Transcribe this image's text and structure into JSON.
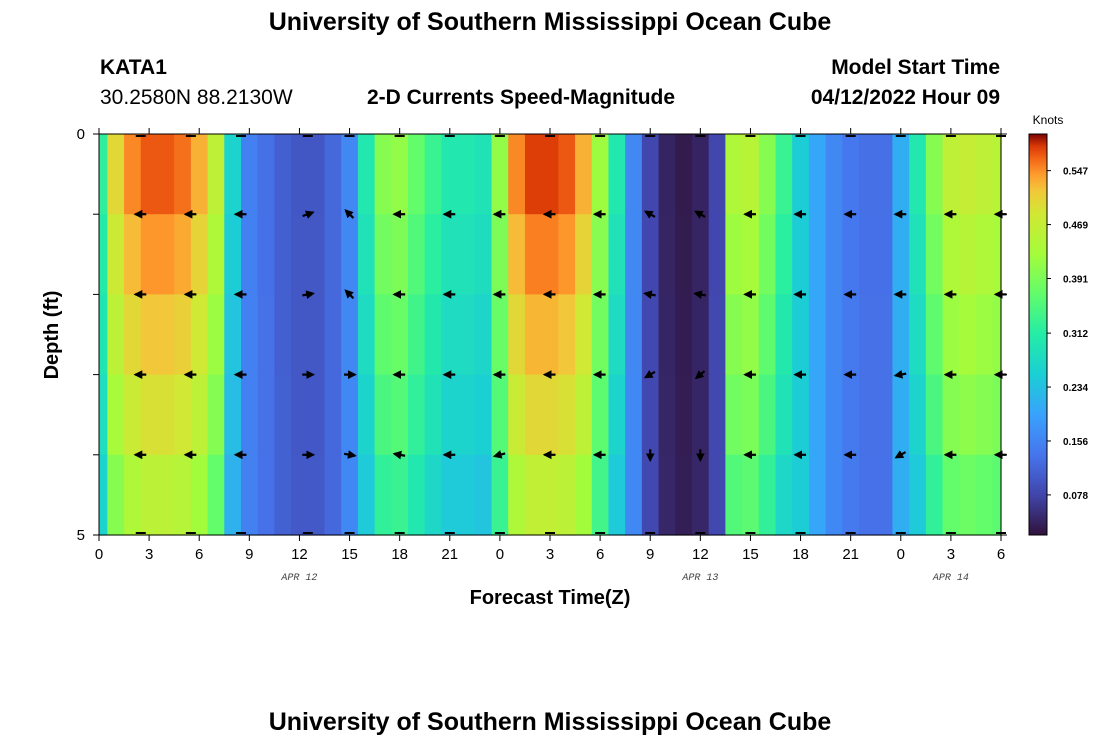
{
  "header": {
    "title": "University of Southern Mississippi Ocean Cube",
    "station": "KATA1",
    "coords": "30.2580N  88.2130W",
    "subtitle": "2-D Currents Speed-Magnitude",
    "model_label": "Model Start Time",
    "model_time": "04/12/2022 Hour 09"
  },
  "footer": {
    "title": "University of Southern Mississippi Ocean Cube"
  },
  "chart_data": {
    "type": "heatmap",
    "title": "2-D Currents Speed-Magnitude",
    "xlabel": "Forecast Time(Z)",
    "ylabel": "Depth (ft)",
    "x_ticks": [
      "0",
      "3",
      "6",
      "9",
      "12",
      "15",
      "18",
      "21",
      "0",
      "3",
      "6",
      "9",
      "12",
      "15",
      "18",
      "21",
      "0",
      "3",
      "6"
    ],
    "date_labels": [
      {
        "label": "APR 12",
        "at_tick": 4
      },
      {
        "label": "APR 13",
        "at_tick": 12
      },
      {
        "label": "APR 14",
        "at_tick": 17
      }
    ],
    "y_ticks": [
      "0",
      "5"
    ],
    "ylim": [
      0,
      5
    ],
    "xlim_hours": [
      0,
      54
    ],
    "colorbar": {
      "label": "Knots",
      "ticks": [
        "0.547",
        "0.469",
        "0.391",
        "0.312",
        "0.234",
        "0.156",
        "0.078"
      ],
      "tick_values": [
        0.547,
        0.469,
        0.391,
        0.312,
        0.234,
        0.156,
        0.078
      ],
      "range": [
        0.02,
        0.6
      ]
    },
    "depth_rows": [
      0.5,
      1.5,
      2.5,
      3.5,
      4.5
    ],
    "times_hours": [
      0,
      1,
      2,
      3,
      4,
      5,
      6,
      7,
      8,
      9,
      10,
      11,
      12,
      13,
      14,
      15,
      16,
      17,
      18,
      19,
      20,
      21,
      22,
      23,
      24,
      25,
      26,
      27,
      28,
      29,
      30,
      31,
      32,
      33,
      34,
      35,
      36,
      37,
      38,
      39,
      40,
      41,
      42,
      43,
      44,
      45,
      46,
      47,
      48,
      49,
      50,
      51,
      52,
      53,
      54
    ],
    "speed_profile_knots": [
      0.32,
      0.5,
      0.55,
      0.57,
      0.57,
      0.56,
      0.53,
      0.46,
      0.26,
      0.15,
      0.13,
      0.11,
      0.1,
      0.1,
      0.12,
      0.16,
      0.3,
      0.4,
      0.41,
      0.37,
      0.33,
      0.3,
      0.3,
      0.29,
      0.41,
      0.55,
      0.58,
      0.58,
      0.57,
      0.53,
      0.42,
      0.3,
      0.16,
      0.08,
      0.04,
      0.03,
      0.04,
      0.08,
      0.44,
      0.45,
      0.4,
      0.33,
      0.25,
      0.2,
      0.16,
      0.14,
      0.13,
      0.13,
      0.21,
      0.3,
      0.4,
      0.46,
      0.47,
      0.46,
      0.45
    ],
    "row_factor": [
      1.0,
      0.95,
      0.9,
      0.85,
      0.78
    ],
    "arrows": {
      "times_hours": [
        2.5,
        5.5,
        8.5,
        12.5,
        15,
        18,
        21,
        24,
        27,
        30,
        33,
        36,
        39,
        42,
        45,
        48,
        51,
        54
      ],
      "rows": [
        {
          "depth": 1,
          "dir_deg": [
            180,
            180,
            180,
            20,
            135,
            180,
            180,
            180,
            180,
            180,
            150,
            150,
            180,
            180,
            180,
            180,
            180,
            180
          ]
        },
        {
          "depth": 2,
          "dir_deg": [
            180,
            180,
            180,
            10,
            135,
            180,
            180,
            180,
            180,
            180,
            170,
            170,
            180,
            180,
            180,
            180,
            180,
            180
          ]
        },
        {
          "depth": 3,
          "dir_deg": [
            180,
            180,
            180,
            0,
            0,
            180,
            180,
            180,
            180,
            180,
            210,
            220,
            180,
            180,
            180,
            190,
            180,
            180
          ]
        },
        {
          "depth": 4,
          "dir_deg": [
            180,
            180,
            180,
            0,
            350,
            170,
            180,
            195,
            180,
            180,
            270,
            270,
            180,
            180,
            180,
            210,
            180,
            180
          ]
        }
      ]
    }
  }
}
